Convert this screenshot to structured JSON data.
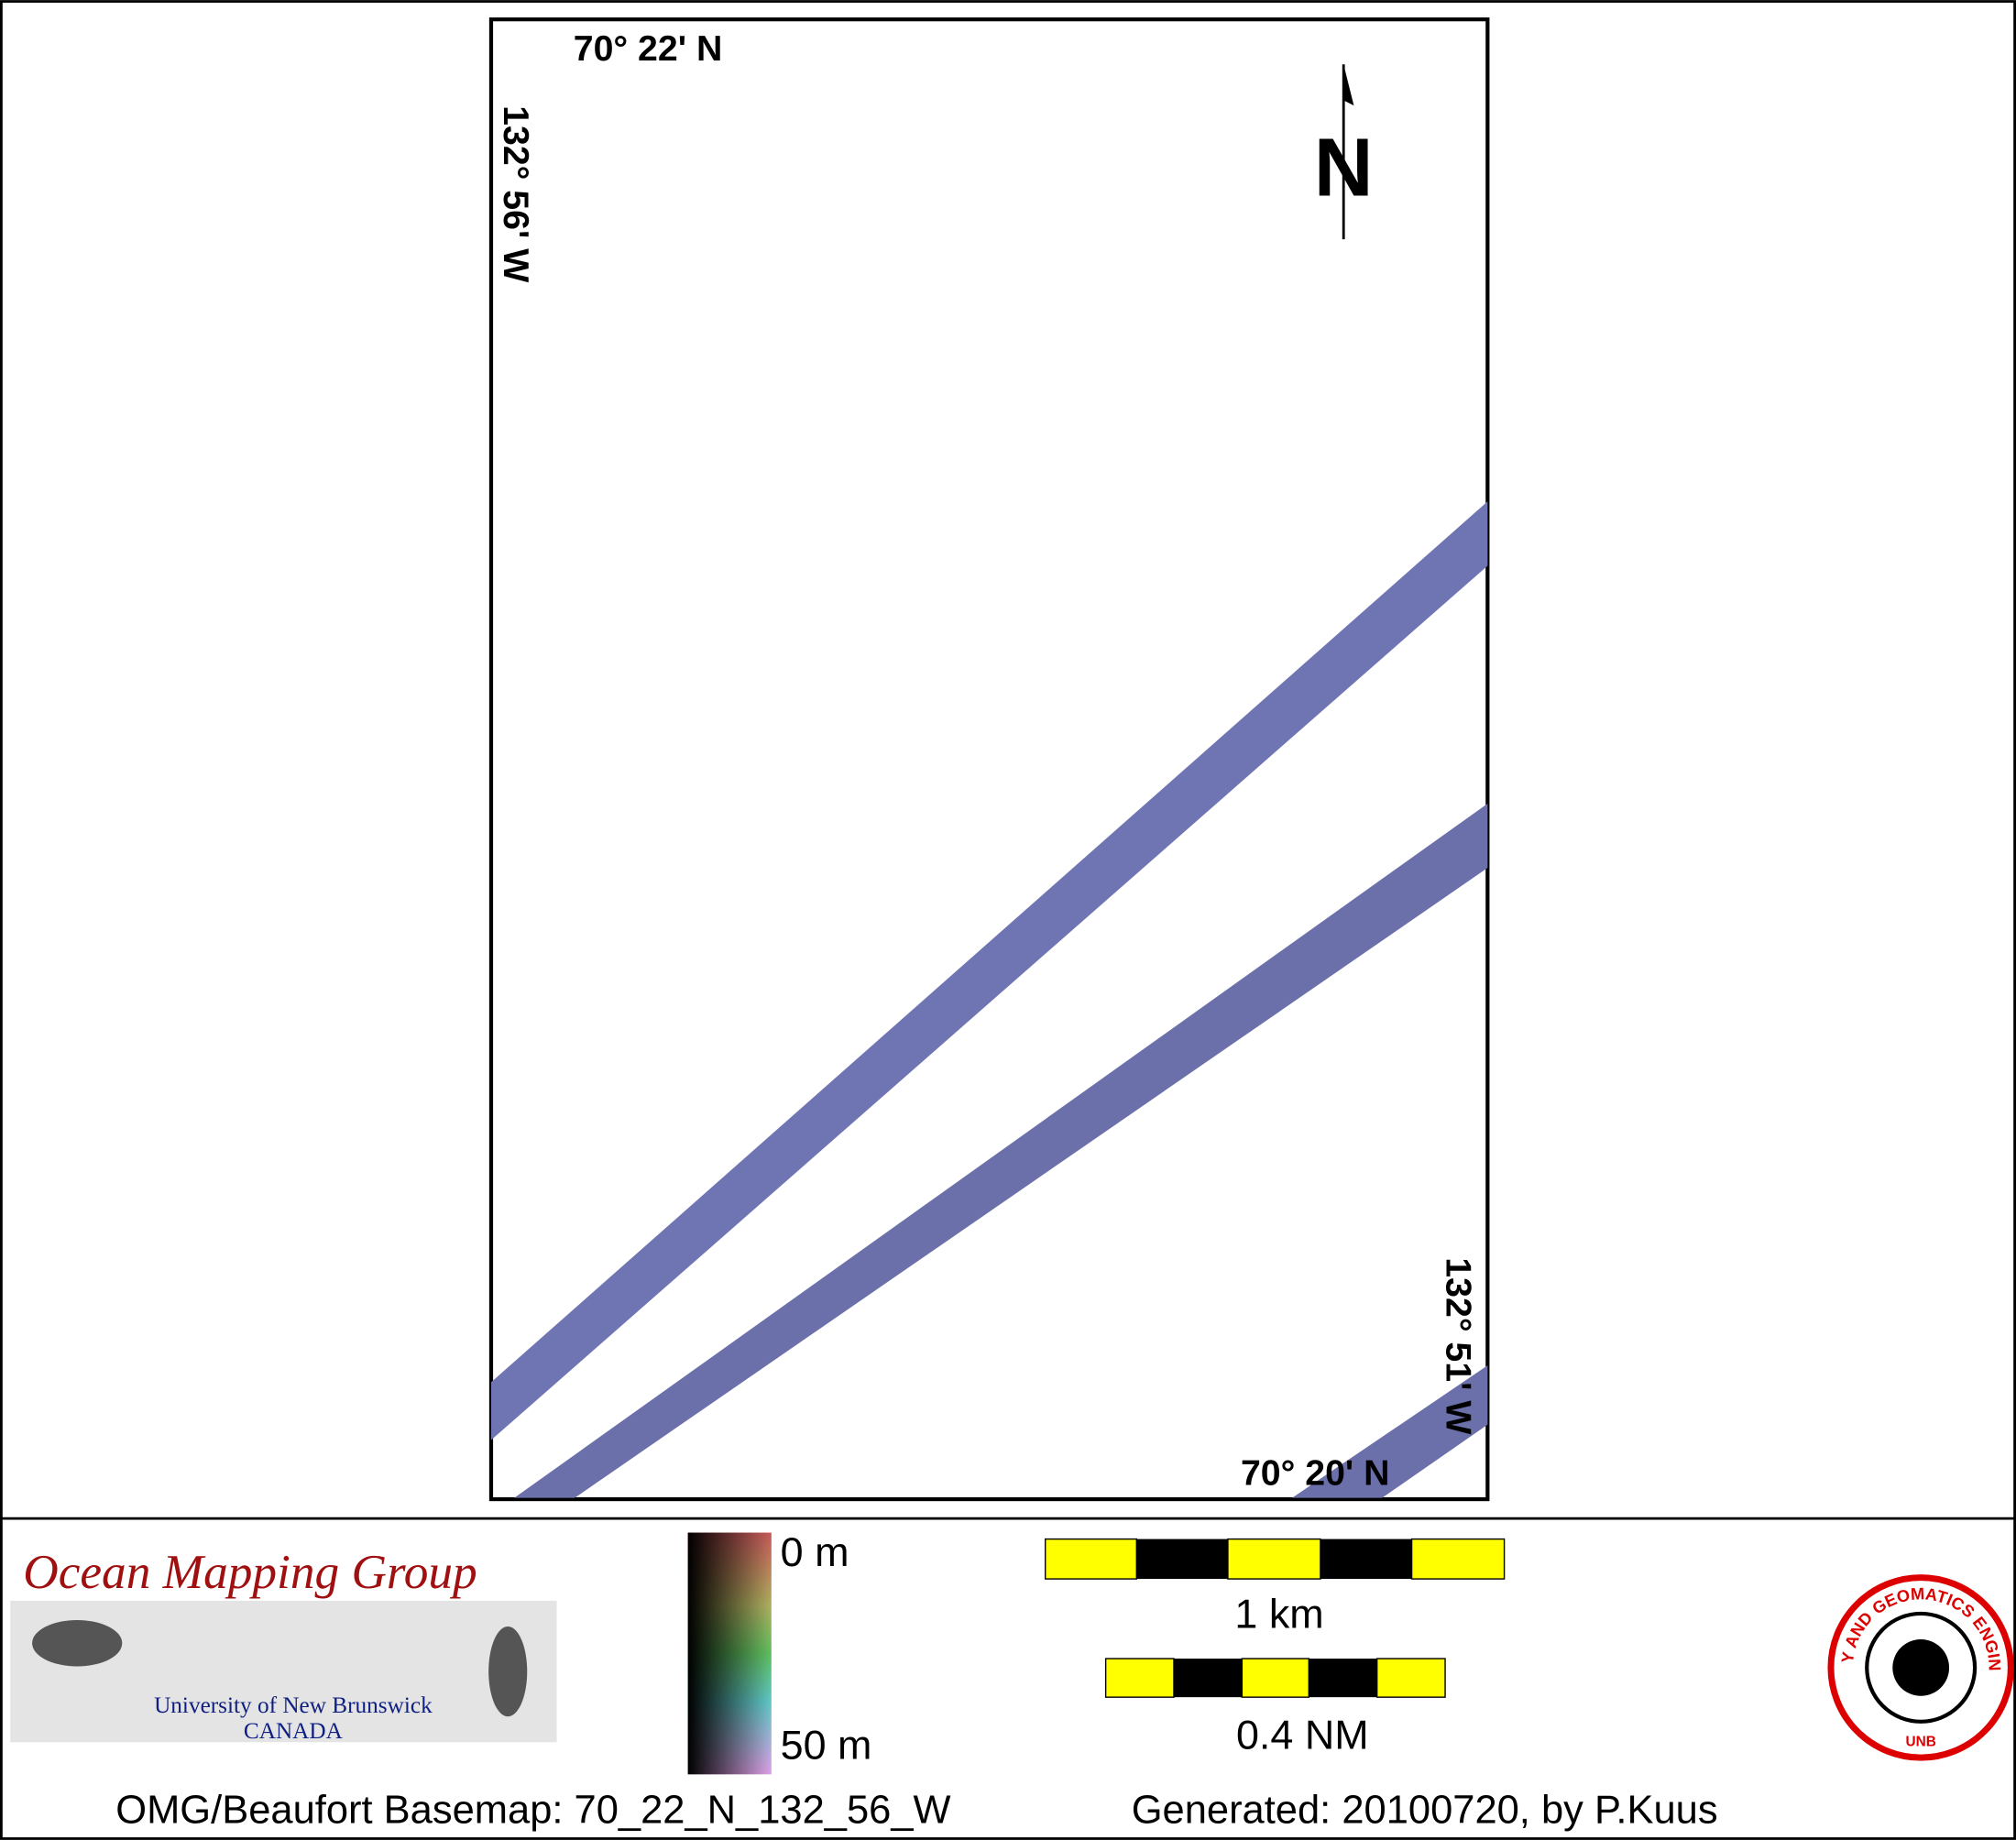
{
  "map": {
    "top_lat": "70° 22' N",
    "left_lon": "132° 56' W",
    "right_lon": "132° 51' W",
    "bottom_lat": "70° 20' N",
    "north_arrow": "N"
  },
  "legend": {
    "depth_top": "0 m",
    "depth_bottom": "50 m"
  },
  "scale_bars": [
    {
      "label": "1 km"
    },
    {
      "label": "0.4 NM"
    }
  ],
  "logos": {
    "omg_title": "Ocean Mapping Group",
    "omg_line1": "University of New Brunswick",
    "omg_line2": "CANADA",
    "unb_ring": "GEODESY AND GEOMATICS ENGINEERING",
    "unb_bottom": "UNB"
  },
  "footer": {
    "basemap": "OMG/Beaufort Basemap: 70_22_N_132_56_W",
    "generated": "Generated: 20100720, by P.Kuus"
  }
}
